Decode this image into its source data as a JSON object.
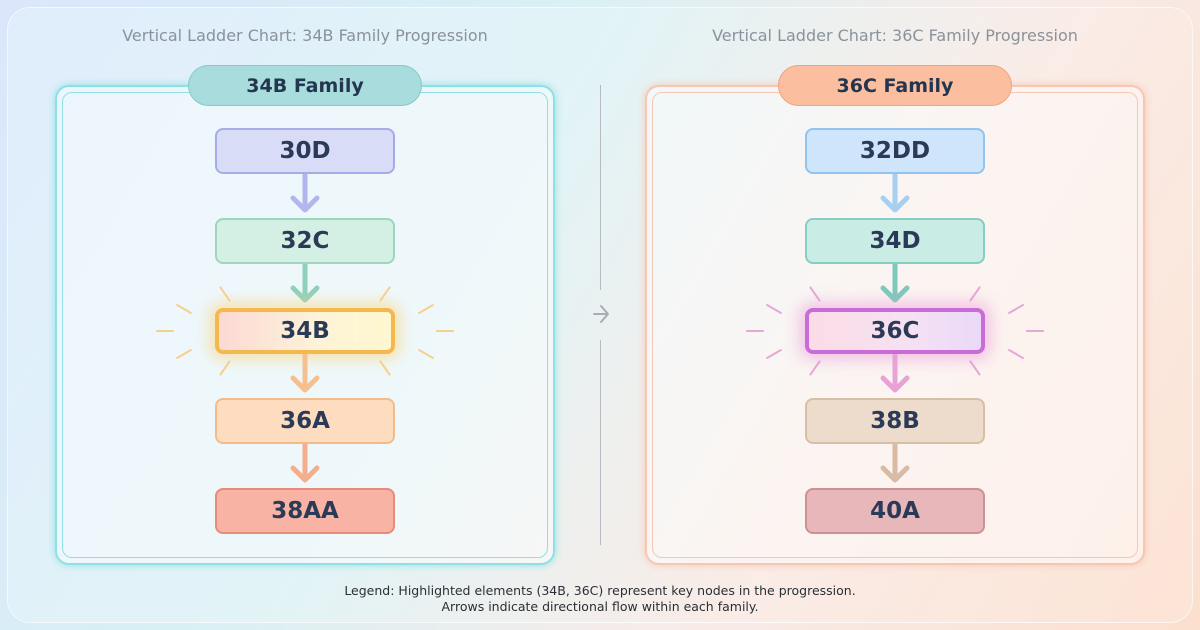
{
  "panels": [
    {
      "title": "Vertical Ladder Chart: 34B Family Progression",
      "family": "34B Family",
      "pill_color": "#a9dcdc",
      "pill_border": "#86c9c9",
      "panel_border": "#8fe0e4",
      "nodes": [
        {
          "label": "30D",
          "fill": "#d9dcf7",
          "border": "#a6ace6"
        },
        {
          "label": "32C",
          "fill": "#d4efe3",
          "border": "#9dd6bd"
        },
        {
          "label": "34B",
          "fill": "linear-gradient(90deg,#fcd9d4,#fdf4d8 60%,#fff7cf)",
          "border": "#f5b84e",
          "highlight": true,
          "glow": "rgba(252,210,120,.55)",
          "ray": "#f6cf8e"
        },
        {
          "label": "36A",
          "fill": "#fddcbf",
          "border": "#f4bb8a"
        },
        {
          "label": "38AA",
          "fill": "#f8b3a4",
          "border": "#e78b7b"
        }
      ],
      "arrow_colors": [
        "#b3b6ee",
        "#8fd1bb",
        "#f5bf90",
        "#f4ae8e"
      ]
    },
    {
      "title": "Vertical Ladder Chart: 36C Family Progression",
      "family": "36C Family",
      "pill_color": "#fbbf9f",
      "pill_border": "#f0a27d",
      "panel_border": "#f6c7b4",
      "nodes": [
        {
          "label": "32DD",
          "fill": "#cfe5fb",
          "border": "#94c3ee"
        },
        {
          "label": "34D",
          "fill": "#c9ece5",
          "border": "#85cec1"
        },
        {
          "label": "36C",
          "fill": "linear-gradient(90deg,#fbdce6,#f5e1f3 60%,#ead9f9)",
          "border": "#c96cd7",
          "highlight": true,
          "glow": "rgba(235,150,220,.5)",
          "ray": "#e5a7d7"
        },
        {
          "label": "38B",
          "fill": "#eddccb",
          "border": "#d6bfa6"
        },
        {
          "label": "40A",
          "fill": "#e7b7b9",
          "border": "#cd9095"
        }
      ],
      "arrow_colors": [
        "#a7cff2",
        "#7ccabc",
        "#e9a2d8",
        "#d9bba5"
      ]
    }
  ],
  "legend": {
    "line1": "Legend: Highlighted elements (34B, 36C) represent key nodes in the progression.",
    "line2": "Arrows indicate directional flow within each family."
  },
  "separator_icon": "chevron-right-icon"
}
